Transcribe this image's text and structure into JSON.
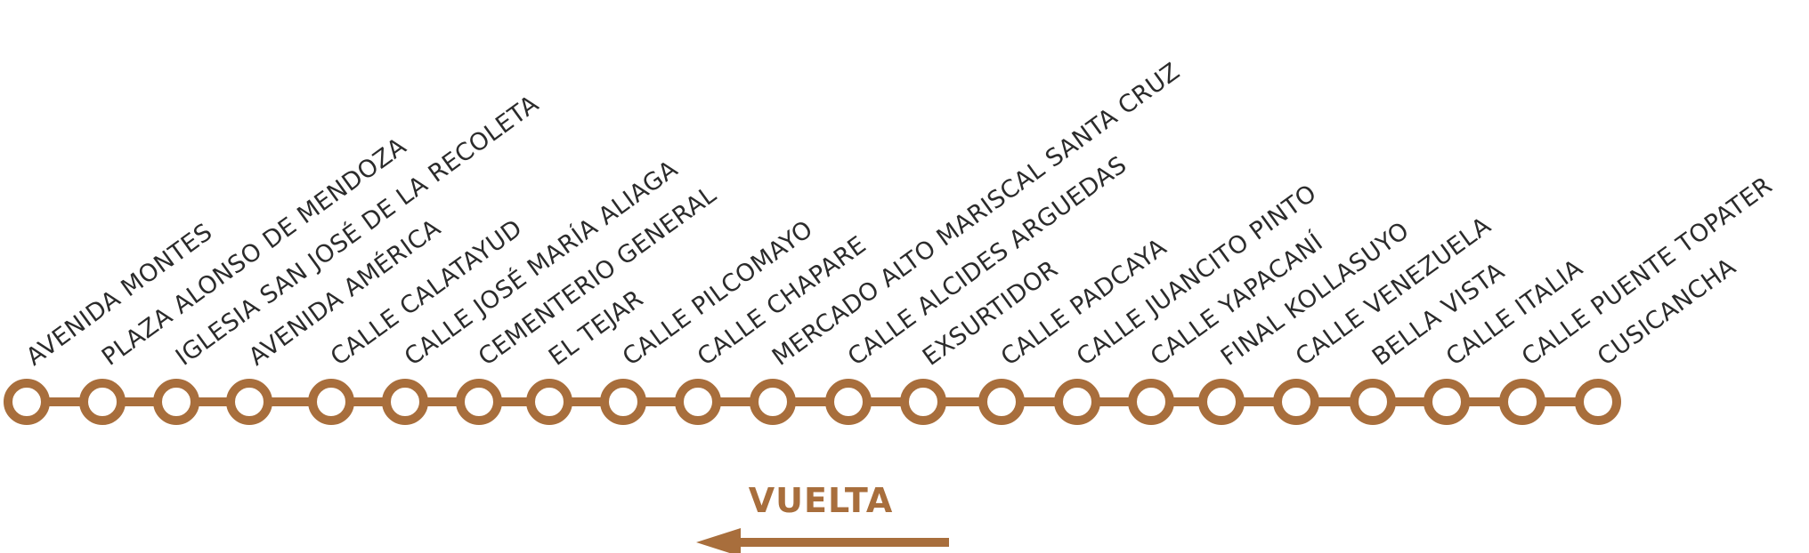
{
  "route": {
    "color": "#A86E3C",
    "direction_label": "VUELTA",
    "stops": [
      "AVENIDA MONTES",
      "PLAZA ALONSO DE MENDOZA",
      "IGLESIA SAN JOSÉ DE LA RECOLETA",
      "AVENIDA AMÉRICA",
      "CALLE CALATAYUD",
      "CALLE JOSÉ MARÍA ALIAGA",
      "CEMENTERIO GENERAL",
      "EL TEJAR",
      "CALLE PILCOMAYO",
      "CALLE CHAPARE",
      "MERCADO ALTO MARISCAL SANTA CRUZ",
      "CALLE ALCIDES ARGUEDAS",
      "EXSURTIDOR",
      "CALLE PADCAYA",
      "CALLE JUANCITO PINTO",
      "CALLE YAPACANÍ",
      "FINAL KOLLASUYO",
      "CALLE VENEZUELA",
      "BELLA VISTA",
      "CALLE ITALIA",
      "CALLE PUENTE TOPATER",
      "CUSICANCHA"
    ]
  }
}
